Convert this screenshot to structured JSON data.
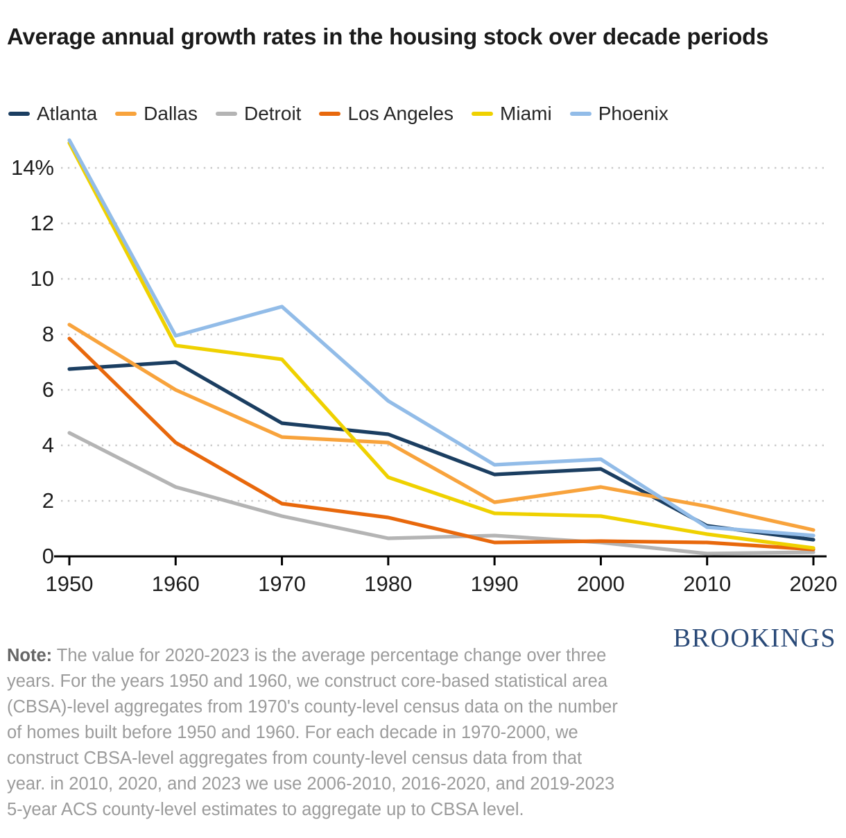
{
  "title": "Average annual growth rates in the housing stock over decade periods",
  "chart_data": {
    "type": "line",
    "x": [
      1950,
      1960,
      1970,
      1980,
      1990,
      2000,
      2010,
      2020
    ],
    "series": [
      {
        "name": "Atlanta",
        "color": "#1b3e61",
        "values": [
          6.75,
          7.0,
          4.8,
          4.4,
          2.95,
          3.15,
          1.1,
          0.6
        ]
      },
      {
        "name": "Dallas",
        "color": "#f8a33c",
        "values": [
          8.35,
          6.0,
          4.3,
          4.1,
          1.95,
          2.5,
          1.8,
          0.95
        ]
      },
      {
        "name": "Detroit",
        "color": "#b4b4b4",
        "values": [
          4.45,
          2.5,
          1.45,
          0.65,
          0.75,
          0.5,
          0.1,
          0.15
        ]
      },
      {
        "name": "Los Angeles",
        "color": "#e8680c",
        "values": [
          7.85,
          4.1,
          1.9,
          1.4,
          0.5,
          0.55,
          0.5,
          0.25
        ]
      },
      {
        "name": "Miami",
        "color": "#efd100",
        "values": [
          14.9,
          7.6,
          7.1,
          2.85,
          1.55,
          1.45,
          0.8,
          0.3
        ]
      },
      {
        "name": "Phoenix",
        "color": "#92bce8",
        "values": [
          15.0,
          7.95,
          9.0,
          5.6,
          3.3,
          3.5,
          1.05,
          0.75
        ]
      }
    ],
    "y_ticks": [
      0,
      2,
      4,
      6,
      8,
      10,
      12,
      14
    ],
    "y_tick_labels": [
      "0",
      "2",
      "4",
      "6",
      "8",
      "10",
      "12",
      "14%"
    ],
    "ylim": [
      0,
      15.2
    ],
    "grid": "horizontal-dotted",
    "legend_position": "top-left"
  },
  "note": {
    "label": "Note:",
    "text": " The value for 2020-2023 is the average percentage change over three years. For the years 1950 and 1960, we construct core-based statistical area (CBSA)-level aggregates from 1970's county-level census data on the number of homes built before 1950 and 1960. For each decade in 1970-2000, we construct CBSA-level aggregates from county-level census data from that year. in 2010, 2020, and 2023 we use 2006-2010, 2016-2020, and 2019-2023 5-year ACS county-level estimates to aggregate up to CBSA level."
  },
  "brand": "BROOKINGS"
}
